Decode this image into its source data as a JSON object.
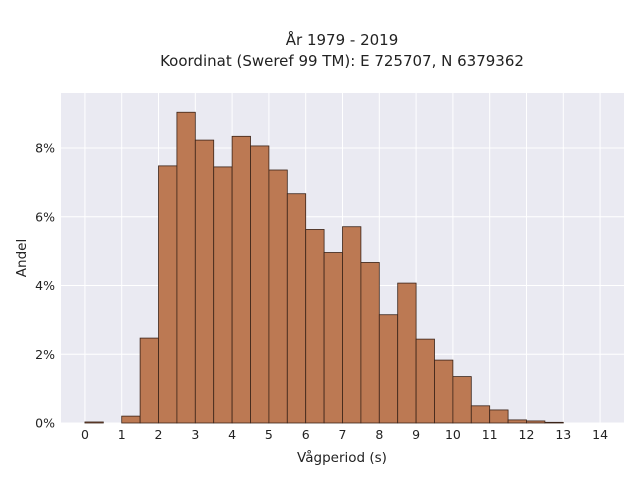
{
  "chart_data": {
    "type": "bar",
    "title": [
      "År 1979 - 2019",
      "Koordinat (Sweref 99 TM): E 725707, N 6379362"
    ],
    "xlabel": "Vågperiod (s)",
    "ylabel": "Andel",
    "xlim": [
      -0.65,
      14.65
    ],
    "ylim": [
      0,
      9.6
    ],
    "x_ticks": [
      "0",
      "1",
      "2",
      "3",
      "4",
      "5",
      "6",
      "7",
      "8",
      "9",
      "10",
      "11",
      "12",
      "13",
      "14"
    ],
    "y_ticks": [
      "0%",
      "2%",
      "4%",
      "6%",
      "8%"
    ],
    "bin_width": 0.5,
    "bins_start": [
      0.0,
      0.5,
      1.0,
      1.5,
      2.0,
      2.5,
      3.0,
      3.5,
      4.0,
      4.5,
      5.0,
      5.5,
      6.0,
      6.5,
      7.0,
      7.5,
      8.0,
      8.5,
      9.0,
      9.5,
      10.0,
      10.5,
      11.0,
      11.5,
      12.0,
      12.5,
      13.0
    ],
    "values": [
      0.03,
      0.0,
      0.2,
      2.47,
      7.48,
      9.04,
      8.23,
      7.45,
      8.34,
      8.06,
      7.36,
      6.67,
      5.63,
      4.96,
      5.71,
      4.67,
      3.15,
      4.07,
      2.44,
      1.83,
      1.35,
      0.5,
      0.38,
      0.09,
      0.06,
      0.02,
      0.0
    ],
    "bar_color": "#bc7953",
    "bar_edge_color": "#3a2318",
    "background": "#eaeaf2",
    "grid": true
  }
}
